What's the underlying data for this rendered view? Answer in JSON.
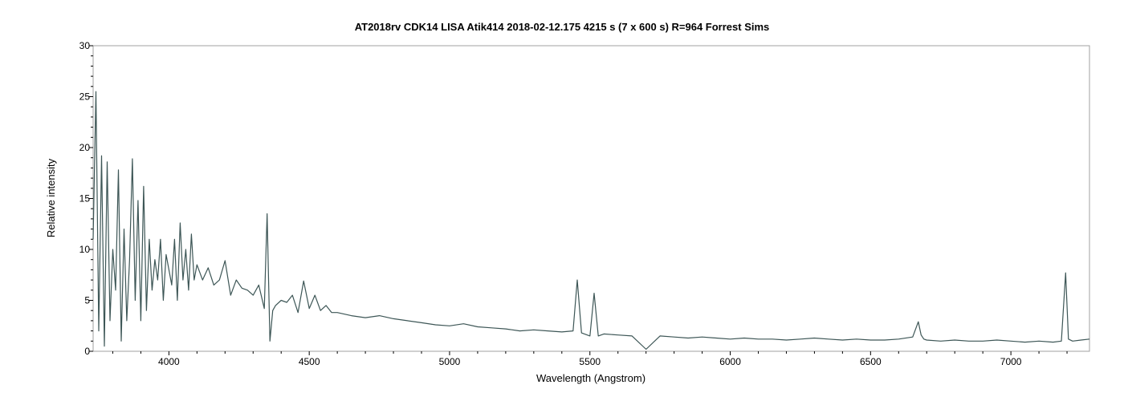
{
  "chart_data": {
    "type": "line",
    "title": "AT2018rv CDK14 LISA Atik414  2018-02-12.175   4215 s (7 x 600 s) R=964  Forrest Sims",
    "xlabel": "Wavelength (Angstrom)",
    "ylabel": "Relative intensity",
    "xlim": [
      3730,
      7280
    ],
    "ylim": [
      0,
      30
    ],
    "x_ticks": [
      4000,
      4500,
      5000,
      5500,
      6000,
      6500,
      7000
    ],
    "y_ticks": [
      0,
      5,
      10,
      15,
      20,
      25,
      30
    ],
    "grid": false,
    "line_color": "#3d5656",
    "series": [
      {
        "x": [
          3730,
          3740,
          3750,
          3760,
          3770,
          3780,
          3790,
          3800,
          3810,
          3820,
          3830,
          3840,
          3850,
          3860,
          3870,
          3880,
          3890,
          3900,
          3910,
          3920,
          3930,
          3940,
          3950,
          3960,
          3970,
          3980,
          3990,
          4000,
          4010,
          4020,
          4030,
          4040,
          4050,
          4060,
          4070,
          4080,
          4090,
          4100,
          4120,
          4140,
          4160,
          4180,
          4200,
          4220,
          4240,
          4260,
          4280,
          4300,
          4320,
          4340,
          4350,
          4360,
          4370,
          4380,
          4400,
          4420,
          4440,
          4460,
          4480,
          4500,
          4520,
          4540,
          4560,
          4580,
          4600,
          4650,
          4700,
          4750,
          4800,
          4850,
          4900,
          4950,
          5000,
          5050,
          5100,
          5150,
          5200,
          5250,
          5300,
          5350,
          5400,
          5440,
          5455,
          5470,
          5500,
          5515,
          5530,
          5550,
          5600,
          5650,
          5700,
          5750,
          5800,
          5850,
          5900,
          5950,
          6000,
          6050,
          6100,
          6150,
          6200,
          6250,
          6300,
          6350,
          6400,
          6450,
          6500,
          6550,
          6600,
          6650,
          6670,
          6680,
          6690,
          6700,
          6750,
          6800,
          6850,
          6900,
          6950,
          7000,
          7050,
          7100,
          7150,
          7180,
          7195,
          7205,
          7220,
          7250,
          7280
        ],
        "y": [
          11,
          25.5,
          2,
          19.2,
          0.5,
          18.6,
          3,
          10,
          6,
          17.8,
          1,
          12,
          3,
          9,
          18.9,
          5,
          14.8,
          3,
          16.2,
          4,
          11,
          6,
          9,
          7,
          11,
          5,
          9.5,
          8,
          6.5,
          11,
          5,
          12.6,
          7,
          10,
          6,
          11.5,
          7,
          8.5,
          7,
          8.2,
          6.5,
          7,
          8.9,
          5.5,
          7,
          6.2,
          6,
          5.5,
          6.5,
          4.2,
          13.5,
          1,
          4,
          4.5,
          5,
          4.8,
          5.5,
          3.8,
          6.9,
          4.2,
          5.5,
          4,
          4.5,
          3.8,
          3.8,
          3.5,
          3.3,
          3.5,
          3.2,
          3,
          2.8,
          2.6,
          2.5,
          2.7,
          2.4,
          2.3,
          2.2,
          2,
          2.1,
          2,
          1.9,
          2,
          7,
          1.8,
          1.5,
          5.7,
          1.5,
          1.7,
          1.6,
          1.5,
          0.2,
          1.5,
          1.4,
          1.3,
          1.4,
          1.3,
          1.2,
          1.3,
          1.2,
          1.2,
          1.1,
          1.2,
          1.3,
          1.2,
          1.1,
          1.2,
          1.1,
          1.1,
          1.2,
          1.4,
          2.9,
          1.6,
          1.2,
          1.1,
          1,
          1.1,
          1,
          1,
          1.1,
          1,
          0.9,
          1,
          0.9,
          1,
          7.7,
          1.2,
          1,
          1.1,
          1.2
        ]
      }
    ]
  }
}
